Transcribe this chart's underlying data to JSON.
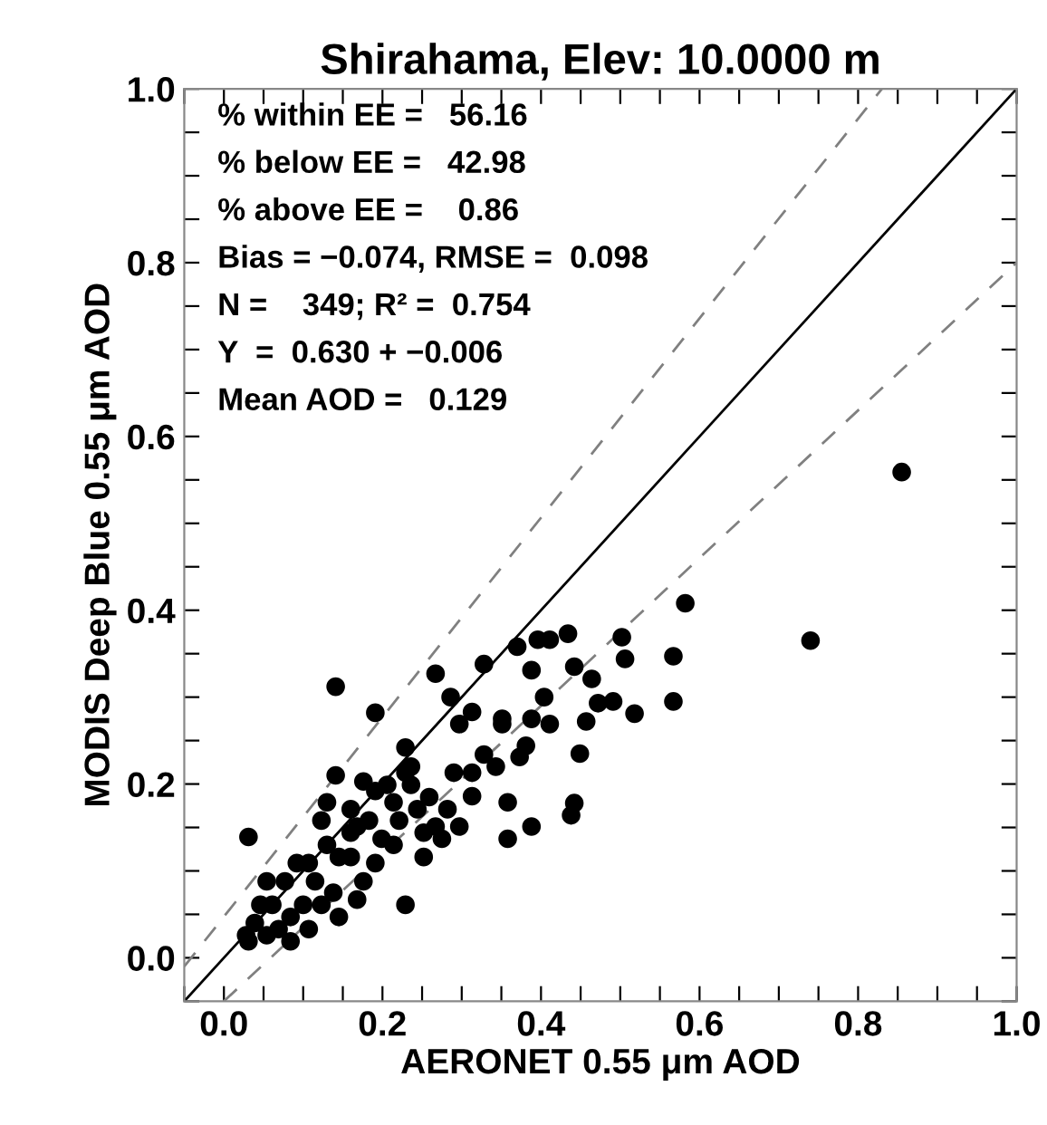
{
  "chart_data": {
    "type": "scatter",
    "title": "Shirahama, Elev: 10.0000 m",
    "xlabel": "AERONET 0.55 μm AOD",
    "ylabel": "MODIS Deep Blue 0.55 μm AOD",
    "xlim": [
      -0.05,
      1.0
    ],
    "ylim": [
      -0.05,
      1.0
    ],
    "xticks": [
      {
        "value": -0.05,
        "label": null
      },
      {
        "value": 0.0,
        "label": "0.0"
      },
      {
        "value": 0.05,
        "label": null
      },
      {
        "value": 0.1,
        "label": null
      },
      {
        "value": 0.15,
        "label": null
      },
      0.2,
      {
        "value": 0.25,
        "label": null
      },
      {
        "value": 0.3,
        "label": null
      },
      {
        "value": 0.35,
        "label": null
      },
      0.4,
      {
        "value": 0.45,
        "label": null
      },
      {
        "value": 0.5,
        "label": null
      },
      {
        "value": 0.55,
        "label": null
      },
      0.6,
      {
        "value": 0.65,
        "label": null
      },
      {
        "value": 0.7,
        "label": null
      },
      {
        "value": 0.75,
        "label": null
      },
      0.8,
      {
        "value": 0.85,
        "label": null
      },
      {
        "value": 0.9,
        "label": null
      },
      {
        "value": 0.95,
        "label": null
      },
      {
        "value": 1.0,
        "label": "1.0"
      }
    ],
    "yticks": [
      {
        "value": -0.05,
        "label": null
      },
      {
        "value": 0.0,
        "label": "0.0"
      },
      {
        "value": 0.05,
        "label": null
      },
      {
        "value": 0.1,
        "label": null
      },
      {
        "value": 0.15,
        "label": null
      },
      0.2,
      {
        "value": 0.25,
        "label": null
      },
      {
        "value": 0.3,
        "label": null
      },
      {
        "value": 0.35,
        "label": null
      },
      0.4,
      {
        "value": 0.45,
        "label": null
      },
      {
        "value": 0.5,
        "label": null
      },
      {
        "value": 0.55,
        "label": null
      },
      0.6,
      {
        "value": 0.65,
        "label": null
      },
      {
        "value": 0.7,
        "label": null
      },
      {
        "value": 0.75,
        "label": null
      },
      0.8,
      {
        "value": 0.85,
        "label": null
      },
      {
        "value": 0.9,
        "label": null
      },
      {
        "value": 0.95,
        "label": null
      },
      {
        "value": 1.0,
        "label": "1.0"
      }
    ],
    "grid": false,
    "legend": false,
    "annotations": [
      "% within EE =   56.16",
      "% below EE =   42.98",
      "% above EE =    0.86",
      "Bias = −0.074, RMSE =  0.098",
      "N =    349; R² =  0.754",
      "Y  =  0.630 + −0.006",
      "Mean AOD =   0.129"
    ],
    "series": [
      {
        "marker": "circle",
        "color": "#000000",
        "x": [
          0.582,
          0.74,
          0.855,
          0.567,
          0.567,
          0.502,
          0.506,
          0.518,
          0.491,
          0.472,
          0.457,
          0.449,
          0.442,
          0.438,
          0.442,
          0.464,
          0.434,
          0.411,
          0.396,
          0.388,
          0.404,
          0.411,
          0.388,
          0.381,
          0.373,
          0.37,
          0.351,
          0.351,
          0.343,
          0.358,
          0.358,
          0.388,
          0.328,
          0.313,
          0.297,
          0.29,
          0.313,
          0.328,
          0.286,
          0.267,
          0.229,
          0.236,
          0.214,
          0.244,
          0.267,
          0.252,
          0.229,
          0.176,
          0.141,
          0.191,
          0.141,
          0.13,
          0.031,
          0.16,
          0.168,
          0.031,
          0.054,
          0.039,
          0.061,
          0.069,
          0.084,
          0.077,
          0.1,
          0.092,
          0.115,
          0.123,
          0.138,
          0.145,
          0.13,
          0.16,
          0.176,
          0.168,
          0.191,
          0.199,
          0.214,
          0.183,
          0.221,
          0.236,
          0.259,
          0.282,
          0.275,
          0.297,
          0.313,
          0.206,
          0.229,
          0.107,
          0.054,
          0.046,
          0.145,
          0.107,
          0.084,
          0.028,
          0.123,
          0.16,
          0.252,
          0.191
        ],
        "values": [
          0.408,
          0.365,
          0.559,
          0.347,
          0.295,
          0.369,
          0.344,
          0.281,
          0.295,
          0.293,
          0.272,
          0.235,
          0.178,
          0.164,
          0.335,
          0.321,
          0.373,
          0.366,
          0.366,
          0.331,
          0.3,
          0.269,
          0.275,
          0.244,
          0.231,
          0.358,
          0.275,
          0.269,
          0.22,
          0.179,
          0.137,
          0.151,
          0.338,
          0.283,
          0.269,
          0.213,
          0.186,
          0.234,
          0.3,
          0.327,
          0.242,
          0.22,
          0.179,
          0.171,
          0.151,
          0.116,
          0.061,
          0.203,
          0.312,
          0.282,
          0.21,
          0.179,
          0.139,
          0.171,
          0.151,
          0.019,
          0.026,
          0.04,
          0.061,
          0.033,
          0.047,
          0.088,
          0.061,
          0.109,
          0.088,
          0.061,
          0.075,
          0.116,
          0.13,
          0.116,
          0.088,
          0.067,
          0.109,
          0.137,
          0.13,
          0.158,
          0.158,
          0.199,
          0.185,
          0.171,
          0.137,
          0.151,
          0.213,
          0.199,
          0.213,
          0.109,
          0.088,
          0.061,
          0.047,
          0.033,
          0.019,
          0.026,
          0.158,
          0.144,
          0.144,
          0.192
        ]
      },
      {
        "type": "line",
        "color": "#000000",
        "line_style": "solid",
        "x": [
          -0.05,
          1.0
        ],
        "values": [
          -0.05,
          1.0
        ]
      },
      {
        "type": "line",
        "color": "#808080",
        "line_style": "dashed",
        "x": [
          -0.05,
          0.83
        ],
        "values": [
          -0.01,
          1.0
        ]
      },
      {
        "type": "line",
        "color": "#808080",
        "line_style": "dashed",
        "x": [
          0.0,
          1.0
        ],
        "values": [
          -0.05,
          0.8
        ]
      }
    ]
  }
}
